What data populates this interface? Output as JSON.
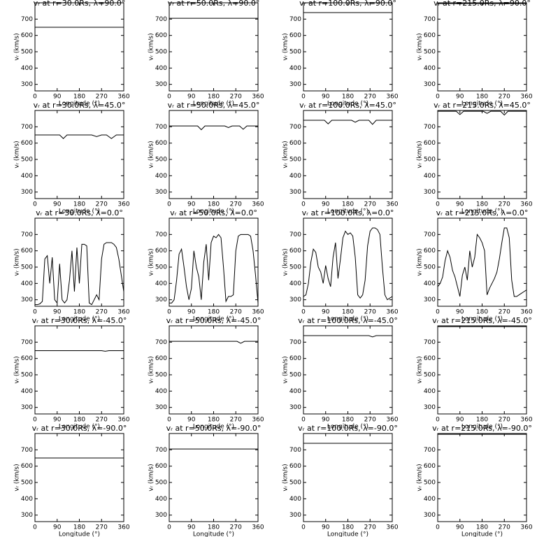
{
  "chart_data": [
    {
      "type": "line",
      "title": "vᵣ at r=30.0Rs,  λ=90.0°",
      "xlabel": "Longitude (°)",
      "ylabel": "vᵣ (km/s)",
      "x": [
        0,
        360
      ],
      "values": [
        650,
        650
      ],
      "color": "#000000",
      "xlim": [
        0,
        360
      ],
      "ylim": [
        260,
        800
      ],
      "xticks": [
        0,
        90,
        180,
        270,
        360
      ],
      "yticks": [
        300,
        400,
        500,
        600,
        700
      ]
    },
    {
      "type": "line",
      "title": "vᵣ at r=50.0Rs,  λ=90.0°",
      "xlabel": "Longitude (°)",
      "ylabel": "vᵣ (km/s)",
      "x": [
        0,
        360
      ],
      "values": [
        705,
        705
      ],
      "color": "#000000",
      "xlim": [
        0,
        360
      ],
      "ylim": [
        260,
        800
      ],
      "xticks": [
        0,
        90,
        180,
        270,
        360
      ],
      "yticks": [
        300,
        400,
        500,
        600,
        700
      ]
    },
    {
      "type": "line",
      "title": "vᵣ at r=100.0Rs,  λ=90.0°",
      "xlabel": "Longitude (°)",
      "ylabel": "vᵣ (km/s)",
      "x": [
        0,
        360
      ],
      "values": [
        740,
        740
      ],
      "color": "#000000",
      "xlim": [
        0,
        360
      ],
      "ylim": [
        260,
        800
      ],
      "xticks": [
        0,
        90,
        180,
        270,
        360
      ],
      "yticks": [
        300,
        400,
        500,
        600,
        700
      ]
    },
    {
      "type": "line",
      "title": "vᵣ at r=215.0Rs,  λ=90.0°",
      "xlabel": "Longitude (°)",
      "ylabel": "vᵣ (km/s)",
      "x": [
        0,
        360
      ],
      "values": [
        795,
        795
      ],
      "color": "#000000",
      "xlim": [
        0,
        360
      ],
      "ylim": [
        260,
        800
      ],
      "xticks": [
        0,
        90,
        180,
        270,
        360
      ],
      "yticks": [
        300,
        400,
        500,
        600,
        700
      ]
    },
    {
      "type": "line",
      "title": "vᵣ at r=30.0Rs,  λ=45.0°",
      "xlabel": "Longitude (°)",
      "ylabel": "vᵣ (km/s)",
      "x": [
        0,
        100,
        115,
        130,
        230,
        250,
        270,
        290,
        310,
        330,
        360
      ],
      "values": [
        650,
        650,
        628,
        650,
        650,
        640,
        650,
        650,
        628,
        650,
        650
      ],
      "color": "#000000",
      "xlim": [
        0,
        360
      ],
      "ylim": [
        260,
        800
      ],
      "xticks": [
        0,
        90,
        180,
        270,
        360
      ],
      "yticks": [
        300,
        400,
        500,
        600,
        700
      ]
    },
    {
      "type": "line",
      "title": "vᵣ at r=50.0Rs,  λ=45.0°",
      "xlabel": "Longitude (°)",
      "ylabel": "vᵣ (km/s)",
      "x": [
        0,
        115,
        130,
        145,
        225,
        240,
        255,
        285,
        300,
        315,
        360
      ],
      "values": [
        705,
        705,
        682,
        705,
        705,
        695,
        705,
        705,
        685,
        705,
        705
      ],
      "color": "#000000",
      "xlim": [
        0,
        360
      ],
      "ylim": [
        260,
        800
      ],
      "xticks": [
        0,
        90,
        180,
        270,
        360
      ],
      "yticks": [
        300,
        400,
        500,
        600,
        700
      ]
    },
    {
      "type": "line",
      "title": "vᵣ at r=100.0Rs,  λ=45.0°",
      "xlabel": "Longitude (°)",
      "ylabel": "vᵣ (km/s)",
      "x": [
        0,
        85,
        100,
        115,
        195,
        210,
        225,
        265,
        280,
        295,
        360
      ],
      "values": [
        740,
        740,
        718,
        740,
        740,
        728,
        740,
        740,
        715,
        740,
        740
      ],
      "color": "#000000",
      "xlim": [
        0,
        360
      ],
      "ylim": [
        260,
        800
      ],
      "xticks": [
        0,
        90,
        180,
        270,
        360
      ],
      "yticks": [
        300,
        400,
        500,
        600,
        700
      ]
    },
    {
      "type": "line",
      "title": "vᵣ at r=215.0Rs,  λ=45.0°",
      "xlabel": "Longitude (°)",
      "ylabel": "vᵣ (km/s)",
      "x": [
        0,
        75,
        90,
        105,
        185,
        200,
        215,
        255,
        270,
        285,
        360
      ],
      "values": [
        795,
        795,
        775,
        795,
        795,
        782,
        795,
        795,
        772,
        795,
        795
      ],
      "color": "#000000",
      "xlim": [
        0,
        360
      ],
      "ylim": [
        260,
        800
      ],
      "xticks": [
        0,
        90,
        180,
        270,
        360
      ],
      "yticks": [
        300,
        400,
        500,
        600,
        700
      ]
    },
    {
      "type": "line",
      "title": "vᵣ at r=30.0Rs,  λ=0.0°",
      "xlabel": "Longitude (°)",
      "ylabel": "vᵣ (km/s)",
      "x": [
        0,
        10,
        20,
        30,
        40,
        50,
        60,
        70,
        80,
        90,
        100,
        110,
        120,
        130,
        140,
        150,
        160,
        170,
        180,
        190,
        200,
        210,
        220,
        230,
        240,
        250,
        260,
        270,
        280,
        290,
        300,
        310,
        320,
        330,
        340,
        350,
        360
      ],
      "values": [
        270,
        270,
        275,
        290,
        550,
        570,
        400,
        560,
        300,
        280,
        520,
        300,
        280,
        300,
        420,
        600,
        350,
        620,
        400,
        640,
        640,
        630,
        280,
        270,
        300,
        330,
        300,
        550,
        640,
        650,
        650,
        650,
        640,
        620,
        550,
        450,
        350
      ],
      "color": "#000000",
      "xlim": [
        0,
        360
      ],
      "ylim": [
        260,
        800
      ],
      "xticks": [
        0,
        90,
        180,
        270,
        360
      ],
      "yticks": [
        300,
        400,
        500,
        600,
        700
      ]
    },
    {
      "type": "line",
      "title": "vᵣ at r=50.0Rs,  λ=0.0°",
      "xlabel": "Longitude (°)",
      "ylabel": "vᵣ (km/s)",
      "x": [
        0,
        10,
        20,
        30,
        40,
        50,
        60,
        70,
        80,
        90,
        100,
        110,
        120,
        130,
        140,
        150,
        160,
        170,
        180,
        190,
        200,
        210,
        220,
        230,
        240,
        250,
        260,
        270,
        280,
        290,
        300,
        310,
        320,
        330,
        340,
        350,
        360
      ],
      "values": [
        280,
        280,
        300,
        420,
        580,
        610,
        500,
        380,
        300,
        370,
        600,
        500,
        440,
        300,
        530,
        640,
        420,
        650,
        690,
        680,
        700,
        680,
        500,
        290,
        320,
        320,
        330,
        600,
        690,
        700,
        700,
        700,
        700,
        690,
        600,
        450,
        280
      ],
      "color": "#000000",
      "xlim": [
        0,
        360
      ],
      "ylim": [
        260,
        800
      ],
      "xticks": [
        0,
        90,
        180,
        270,
        360
      ],
      "yticks": [
        300,
        400,
        500,
        600,
        700
      ]
    },
    {
      "type": "line",
      "title": "vᵣ at r=100.0Rs,  λ=0.0°",
      "xlabel": "Longitude (°)",
      "ylabel": "vᵣ (km/s)",
      "x": [
        0,
        10,
        20,
        30,
        40,
        50,
        60,
        70,
        80,
        90,
        100,
        110,
        120,
        130,
        140,
        150,
        160,
        170,
        180,
        190,
        200,
        210,
        220,
        230,
        240,
        250,
        260,
        270,
        280,
        290,
        300,
        310,
        320,
        330,
        340,
        350,
        360
      ],
      "values": [
        320,
        330,
        400,
        530,
        610,
        590,
        500,
        470,
        400,
        510,
        430,
        380,
        560,
        650,
        430,
        550,
        680,
        720,
        700,
        710,
        690,
        560,
        330,
        310,
        330,
        420,
        630,
        720,
        740,
        740,
        730,
        700,
        500,
        330,
        300,
        310,
        320
      ],
      "color": "#000000",
      "xlim": [
        0,
        360
      ],
      "ylim": [
        260,
        800
      ],
      "xticks": [
        0,
        90,
        180,
        270,
        360
      ],
      "yticks": [
        300,
        400,
        500,
        600,
        700
      ]
    },
    {
      "type": "line",
      "title": "vᵣ at r=215.0Rs,  λ=0.0°",
      "xlabel": "Longitude (°)",
      "ylabel": "vᵣ (km/s)",
      "x": [
        0,
        10,
        20,
        30,
        40,
        50,
        60,
        70,
        80,
        90,
        100,
        110,
        120,
        130,
        140,
        150,
        160,
        170,
        180,
        190,
        200,
        210,
        220,
        230,
        240,
        250,
        260,
        270,
        280,
        290,
        300,
        310,
        320,
        330,
        340,
        350,
        360
      ],
      "values": [
        380,
        400,
        440,
        540,
        600,
        560,
        480,
        440,
        380,
        320,
        450,
        500,
        420,
        600,
        500,
        560,
        700,
        680,
        650,
        600,
        330,
        370,
        400,
        430,
        470,
        550,
        650,
        740,
        740,
        680,
        420,
        320,
        320,
        330,
        340,
        350,
        360
      ],
      "color": "#000000",
      "xlim": [
        0,
        360
      ],
      "ylim": [
        260,
        800
      ],
      "xticks": [
        0,
        90,
        180,
        270,
        360
      ],
      "yticks": [
        300,
        400,
        500,
        600,
        700
      ]
    },
    {
      "type": "line",
      "title": "vᵣ at r=30.0Rs,  λ=-45.0°",
      "xlabel": "Longitude (°)",
      "ylabel": "vᵣ (km/s)",
      "x": [
        0,
        270,
        285,
        300,
        360
      ],
      "values": [
        648,
        648,
        644,
        648,
        648
      ],
      "color": "#000000",
      "xlim": [
        0,
        360
      ],
      "ylim": [
        260,
        800
      ],
      "xticks": [
        0,
        90,
        180,
        270,
        360
      ],
      "yticks": [
        300,
        400,
        500,
        600,
        700
      ]
    },
    {
      "type": "line",
      "title": "vᵣ at r=50.0Rs,  λ=-45.0°",
      "xlabel": "Longitude (°)",
      "ylabel": "vᵣ (km/s)",
      "x": [
        0,
        275,
        290,
        305,
        360
      ],
      "values": [
        705,
        705,
        693,
        705,
        705
      ],
      "color": "#000000",
      "xlim": [
        0,
        360
      ],
      "ylim": [
        260,
        800
      ],
      "xticks": [
        0,
        90,
        180,
        270,
        360
      ],
      "yticks": [
        300,
        400,
        500,
        600,
        700
      ]
    },
    {
      "type": "line",
      "title": "vᵣ at r=100.0Rs,  λ=-45.0°",
      "xlabel": "Longitude (°)",
      "ylabel": "vᵣ (km/s)",
      "x": [
        0,
        265,
        280,
        295,
        360
      ],
      "values": [
        740,
        740,
        732,
        740,
        740
      ],
      "color": "#000000",
      "xlim": [
        0,
        360
      ],
      "ylim": [
        260,
        800
      ],
      "xticks": [
        0,
        90,
        180,
        270,
        360
      ],
      "yticks": [
        300,
        400,
        500,
        600,
        700
      ]
    },
    {
      "type": "line",
      "title": "vᵣ at r=215.0Rs,  λ=-45.0°",
      "xlabel": "Longitude (°)",
      "ylabel": "vᵣ (km/s)",
      "x": [
        0,
        360
      ],
      "values": [
        795,
        795
      ],
      "color": "#000000",
      "xlim": [
        0,
        360
      ],
      "ylim": [
        260,
        800
      ],
      "xticks": [
        0,
        90,
        180,
        270,
        360
      ],
      "yticks": [
        300,
        400,
        500,
        600,
        700
      ]
    },
    {
      "type": "line",
      "title": "vᵣ at r=30.0Rs,  λ=-90.0°",
      "xlabel": "Longitude (°)",
      "ylabel": "vᵣ (km/s)",
      "x": [
        0,
        360
      ],
      "values": [
        650,
        650
      ],
      "color": "#000000",
      "xlim": [
        0,
        360
      ],
      "ylim": [
        260,
        800
      ],
      "xticks": [
        0,
        90,
        180,
        270,
        360
      ],
      "yticks": [
        300,
        400,
        500,
        600,
        700
      ]
    },
    {
      "type": "line",
      "title": "vᵣ at r=50.0Rs,  λ=-90.0°",
      "xlabel": "Longitude (°)",
      "ylabel": "vᵣ (km/s)",
      "x": [
        0,
        360
      ],
      "values": [
        705,
        705
      ],
      "color": "#000000",
      "xlim": [
        0,
        360
      ],
      "ylim": [
        260,
        800
      ],
      "xticks": [
        0,
        90,
        180,
        270,
        360
      ],
      "yticks": [
        300,
        400,
        500,
        600,
        700
      ]
    },
    {
      "type": "line",
      "title": "vᵣ at r=100.0Rs,  λ=-90.0°",
      "xlabel": "Longitude (°)",
      "ylabel": "vᵣ (km/s)",
      "x": [
        0,
        360
      ],
      "values": [
        740,
        740
      ],
      "color": "#000000",
      "xlim": [
        0,
        360
      ],
      "ylim": [
        260,
        800
      ],
      "xticks": [
        0,
        90,
        180,
        270,
        360
      ],
      "yticks": [
        300,
        400,
        500,
        600,
        700
      ]
    },
    {
      "type": "line",
      "title": "vᵣ at r=215.0Rs,  λ=-90.0°",
      "xlabel": "Longitude (°)",
      "ylabel": "vᵣ (km/s)",
      "x": [
        0,
        360
      ],
      "values": [
        795,
        795
      ],
      "color": "#000000",
      "xlim": [
        0,
        360
      ],
      "ylim": [
        260,
        800
      ],
      "xticks": [
        0,
        90,
        180,
        270,
        360
      ],
      "yticks": [
        300,
        400,
        500,
        600,
        700
      ]
    }
  ]
}
